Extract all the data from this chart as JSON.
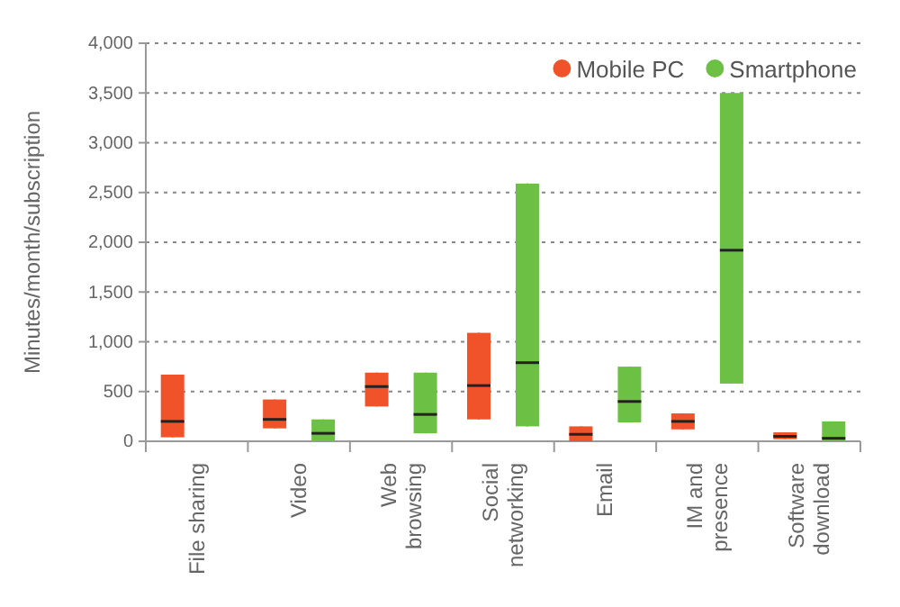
{
  "chart_data": {
    "type": "box",
    "ylabel": "Minutes/month/subscription",
    "categories": [
      "File sharing",
      "Video",
      "Web\nbrowsing",
      "Social\nnetworking",
      "Email",
      "IM and\npresence",
      "Software\ndownload"
    ],
    "series": [
      {
        "name": "Mobile PC",
        "color": "#f0522a",
        "boxes": [
          {
            "low": 40,
            "q1": 40,
            "median": 200,
            "q3": 670,
            "high": 670
          },
          {
            "low": 130,
            "q1": 130,
            "median": 220,
            "q3": 420,
            "high": 420
          },
          {
            "low": 350,
            "q1": 350,
            "median": 550,
            "q3": 690,
            "high": 690
          },
          {
            "low": 220,
            "q1": 220,
            "median": 560,
            "q3": 1090,
            "high": 1090
          },
          {
            "low": 0,
            "q1": 0,
            "median": 70,
            "q3": 150,
            "high": 150
          },
          {
            "low": 120,
            "q1": 120,
            "median": 200,
            "q3": 280,
            "high": 280
          },
          {
            "low": 20,
            "q1": 20,
            "median": 50,
            "q3": 90,
            "high": 90
          }
        ]
      },
      {
        "name": "Smartphone",
        "color": "#6cc043",
        "boxes": [
          null,
          {
            "low": 0,
            "q1": 0,
            "median": 80,
            "q3": 220,
            "high": 220
          },
          {
            "low": 80,
            "q1": 80,
            "median": 270,
            "q3": 690,
            "high": 690
          },
          {
            "low": 150,
            "q1": 150,
            "median": 790,
            "q3": 2590,
            "high": 2590
          },
          {
            "low": 190,
            "q1": 190,
            "median": 400,
            "q3": 750,
            "high": 750
          },
          {
            "low": 580,
            "q1": 580,
            "median": 1920,
            "q3": 3500,
            "high": 3500
          },
          {
            "low": 0,
            "q1": 0,
            "median": 30,
            "q3": 200,
            "high": 200
          }
        ]
      }
    ],
    "ylim": [
      0,
      4000
    ],
    "yticks": [
      0,
      500,
      {
        "value": 1000,
        "label": "1,000"
      },
      {
        "value": 1500,
        "label": "1,500"
      },
      {
        "value": 2000,
        "label": "2,000"
      },
      {
        "value": 2500,
        "label": "2,500"
      },
      {
        "value": 3000,
        "label": "3,000"
      },
      {
        "value": 3500,
        "label": "3,500"
      },
      {
        "value": 4000,
        "label": "4,000"
      }
    ],
    "grid": "y",
    "legend": "top right"
  }
}
